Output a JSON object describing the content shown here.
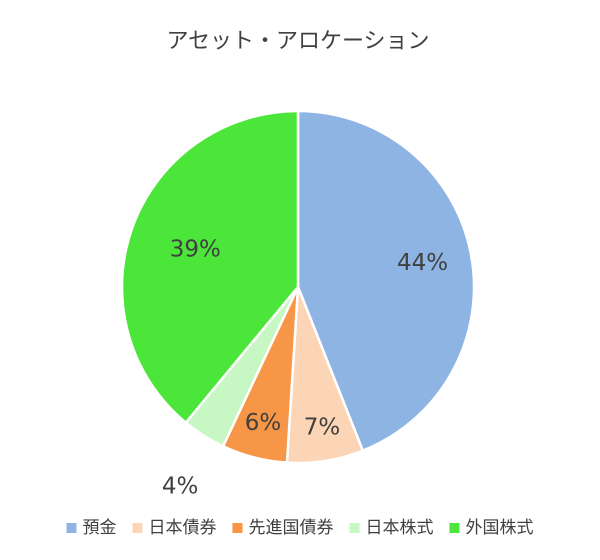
{
  "chart_data": {
    "type": "pie",
    "title": "アセット・アロケーション",
    "categories": [
      "預金",
      "日本債券",
      "先進国債券",
      "日本株式",
      "外国株式"
    ],
    "values": [
      44,
      7,
      6,
      4,
      39
    ],
    "labels": [
      "44%",
      "7%",
      "6%",
      "4%",
      "39%"
    ],
    "colors": [
      "#8eb4e3",
      "#fbd5b5",
      "#f79646",
      "#c7f7c3",
      "#4ce63a"
    ],
    "legend_position": "bottom",
    "start_angle": "top (12 o'clock), clockwise"
  }
}
